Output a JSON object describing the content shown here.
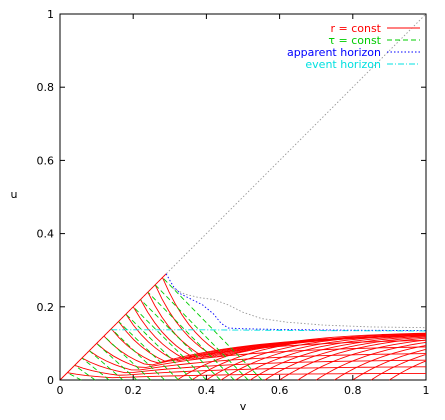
{
  "chart_data": {
    "type": "line",
    "xlabel": "v",
    "ylabel": "u",
    "xlim": [
      0,
      1
    ],
    "ylim": [
      0,
      1
    ],
    "xticks": [
      "0",
      "0.2",
      "0.4",
      "0.6",
      "0.8",
      "1"
    ],
    "yticks": [
      "0",
      "0.2",
      "0.4",
      "0.6",
      "0.8",
      "1"
    ],
    "grid": false,
    "legend_position": "top-right",
    "legend": [
      {
        "label": "r = const",
        "color": "#ff0000",
        "dash": "solid"
      },
      {
        "label": "τ = const",
        "color": "#00cc00",
        "dash": "dashed"
      },
      {
        "label": "apparent horizon",
        "color": "#0000ff",
        "dash": "dotted"
      },
      {
        "label": "event horizon",
        "color": "#00e0e0",
        "dash": "dash-dot"
      }
    ],
    "series": [
      {
        "key": "diagonal",
        "color": "#999999",
        "dash": "dotted",
        "points": [
          [
            0,
            0
          ],
          [
            1,
            1
          ]
        ]
      },
      {
        "key": "boundary",
        "color": "#ff0000",
        "dash": "solid",
        "points": [
          [
            0,
            0
          ],
          [
            0.29,
            0.29
          ]
        ]
      },
      {
        "key": "apparent-horizon",
        "color": "#0000ff",
        "dash": "dotted",
        "points": [
          [
            0.29,
            0.29
          ],
          [
            0.31,
            0.255
          ],
          [
            0.33,
            0.235
          ],
          [
            0.36,
            0.22
          ],
          [
            0.39,
            0.205
          ],
          [
            0.42,
            0.18
          ],
          [
            0.44,
            0.155
          ],
          [
            0.46,
            0.142
          ],
          [
            0.5,
            0.14
          ],
          [
            0.6,
            0.138
          ],
          [
            0.8,
            0.136
          ],
          [
            1.0,
            0.135
          ]
        ]
      },
      {
        "key": "outer-dotted",
        "color": "#999999",
        "dash": "dotted",
        "points": [
          [
            0.31,
            0.25
          ],
          [
            0.34,
            0.235
          ],
          [
            0.38,
            0.225
          ],
          [
            0.42,
            0.22
          ],
          [
            0.46,
            0.205
          ],
          [
            0.5,
            0.185
          ],
          [
            0.55,
            0.168
          ],
          [
            0.62,
            0.158
          ],
          [
            0.72,
            0.15
          ],
          [
            0.85,
            0.145
          ],
          [
            1.0,
            0.143
          ]
        ]
      },
      {
        "key": "event-horizon",
        "color": "#00e0e0",
        "dash": "dash-dot",
        "points": [
          [
            0.14,
            0.137
          ],
          [
            0.4,
            0.137
          ],
          [
            0.7,
            0.135
          ],
          [
            1.0,
            0.134
          ]
        ]
      }
    ],
    "r_const_lines": {
      "color": "#ff0000",
      "dash": "solid",
      "start_v": [
        0.02,
        0.04,
        0.06,
        0.08,
        0.1,
        0.12,
        0.14,
        0.16,
        0.18,
        0.2,
        0.22,
        0.24,
        0.26,
        0.28,
        0.32,
        0.36,
        0.4,
        0.44,
        0.48,
        0.52,
        0.56,
        0.6,
        0.65,
        0.7,
        0.75,
        0.8,
        0.85,
        0.9
      ]
    },
    "tau_const_lines": {
      "color": "#00cc00",
      "dash": "dashed",
      "start_u": [
        0.02,
        0.04,
        0.06,
        0.08,
        0.1,
        0.12,
        0.14,
        0.16,
        0.18,
        0.2,
        0.22,
        0.24,
        0.26,
        0.28
      ]
    }
  }
}
